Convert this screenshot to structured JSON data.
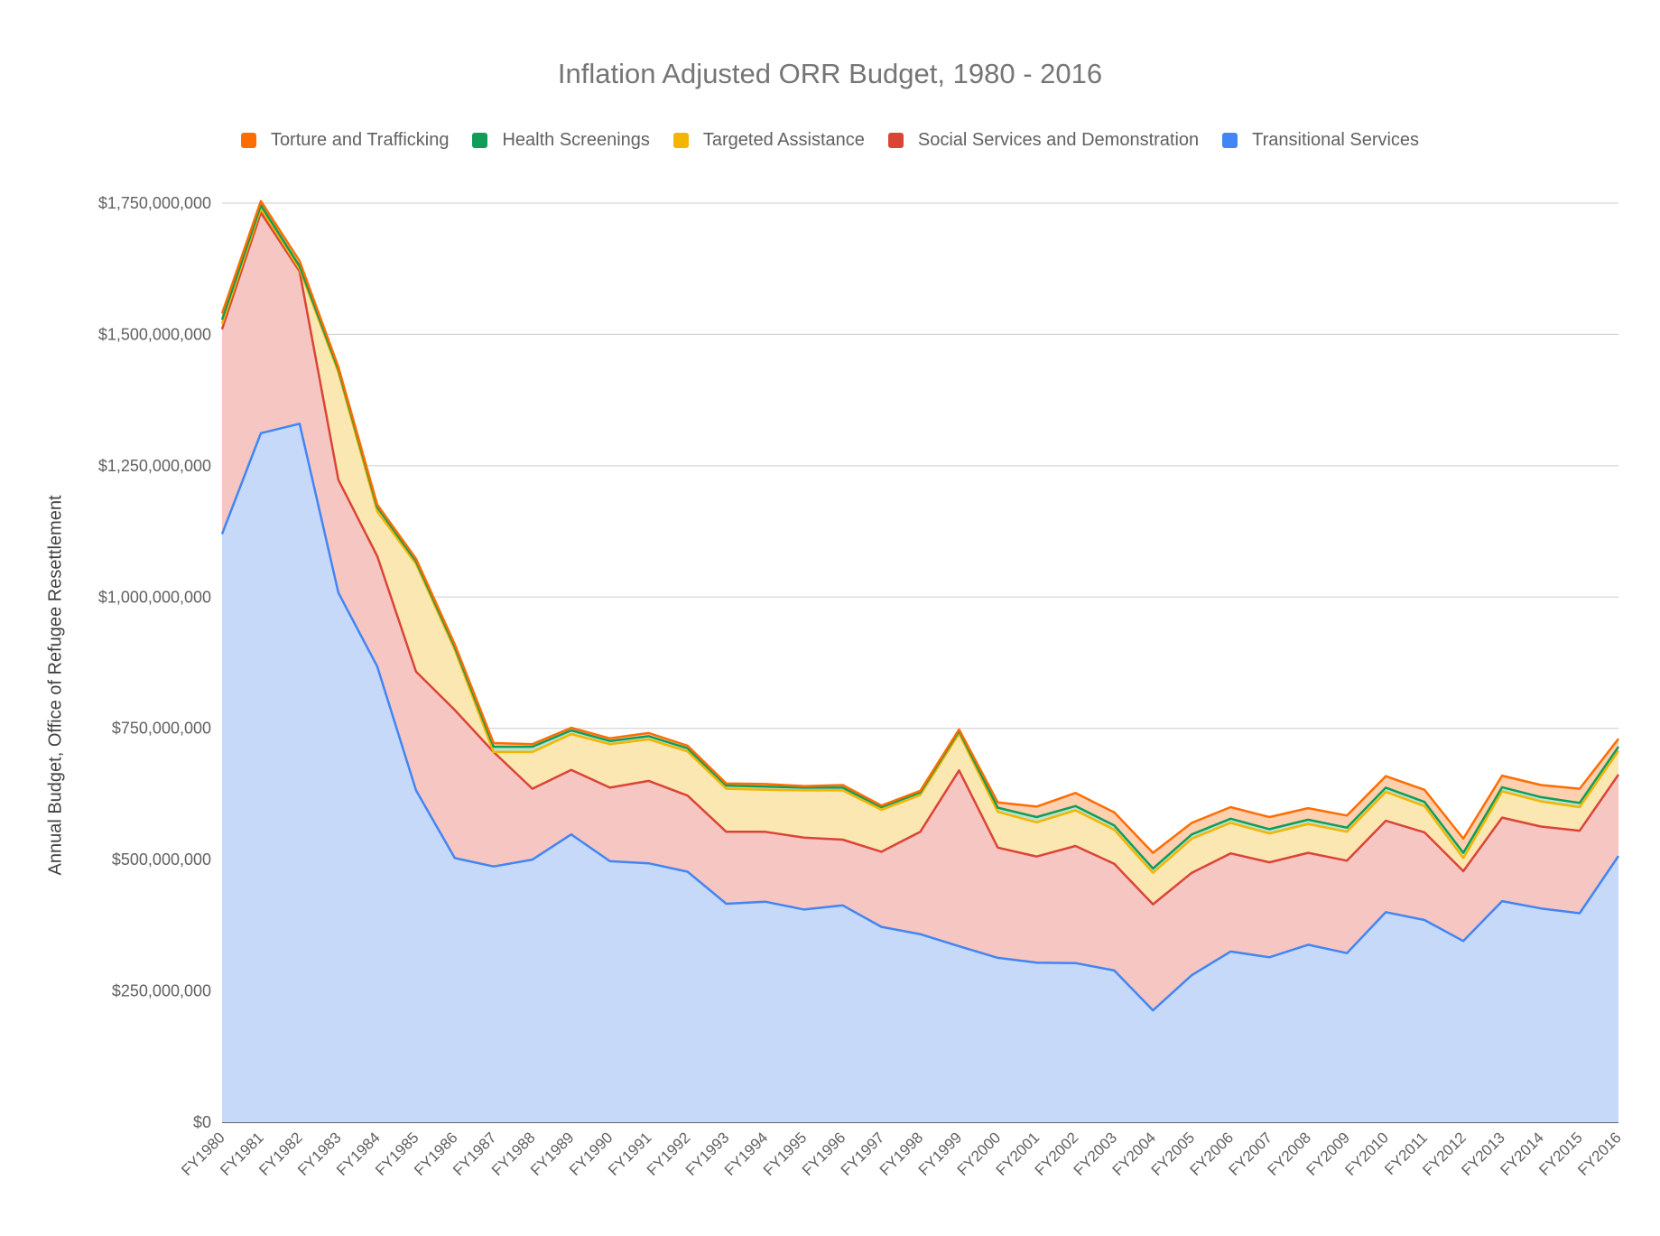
{
  "chart_data": {
    "type": "area",
    "stacked": true,
    "title": "Inflation Adjusted ORR Budget, 1980 - 2016",
    "ylabel": "Annual Budget, Office of Refugee Resettlement",
    "xlabel": "",
    "ylim": [
      0,
      1750000000
    ],
    "yticks": [
      "$0",
      "$250,000,000",
      "$500,000,000",
      "$750,000,000",
      "$1,000,000,000",
      "$1,250,000,000",
      "$1,500,000,000",
      "$1,750,000,000"
    ],
    "ytick_values": [
      0,
      250000000,
      500000000,
      750000000,
      1000000000,
      1250000000,
      1500000000,
      1750000000
    ],
    "grid": true,
    "legend_position": "top",
    "categories": [
      "FY1980",
      "FY1981",
      "FY1982",
      "FY1983",
      "FY1984",
      "FY1985",
      "FY1986",
      "FY1987",
      "FY1988",
      "FY1989",
      "FY1990",
      "FY1991",
      "FY1992",
      "FY1993",
      "FY1994",
      "FY1995",
      "FY1996",
      "FY1997",
      "FY1998",
      "FY1999",
      "FY2000",
      "FY2001",
      "FY2002",
      "FY2003",
      "FY2004",
      "FY2005",
      "FY2006",
      "FY2007",
      "FY2008",
      "FY2009",
      "FY2010",
      "FY2011",
      "FY2012",
      "FY2013",
      "FY2014",
      "FY2015",
      "FY2016"
    ],
    "series": [
      {
        "name": "Transitional Services",
        "color": "#4285f4",
        "fill": "#c6d9f9",
        "values": [
          1120000000,
          1312000000,
          1330000000,
          1008000000,
          868000000,
          632000000,
          503000000,
          487000000,
          500000000,
          548000000,
          497000000,
          493000000,
          477000000,
          416000000,
          420000000,
          405000000,
          413000000,
          372000000,
          358000000,
          335000000,
          313000000,
          304000000,
          303000000,
          289000000,
          213000000,
          280000000,
          325000000,
          314000000,
          338000000,
          322000000,
          400000000,
          385000000,
          345000000,
          421000000,
          407000000,
          398000000,
          507000000
        ]
      },
      {
        "name": "Social Services and Demonstration",
        "color": "#db4437",
        "fill": "#f5c6c2",
        "values": [
          390000000,
          420000000,
          290000000,
          215000000,
          210000000,
          226000000,
          282000000,
          218000000,
          135000000,
          123000000,
          140000000,
          157000000,
          145000000,
          137000000,
          133000000,
          137000000,
          125000000,
          143000000,
          195000000,
          335000000,
          210000000,
          202000000,
          223000000,
          203000000,
          202000000,
          195000000,
          187000000,
          181000000,
          175000000,
          176000000,
          174000000,
          167000000,
          133000000,
          159000000,
          156000000,
          157000000,
          155000000
        ]
      },
      {
        "name": "Targeted Assistance",
        "color": "#f4b400",
        "fill": "#fbe7b2",
        "values": [
          10000000,
          8000000,
          5000000,
          205000000,
          85000000,
          205000000,
          115000000,
          0,
          70000000,
          68000000,
          83000000,
          79000000,
          84000000,
          82000000,
          80000000,
          90000000,
          94000000,
          80000000,
          70000000,
          70000000,
          68000000,
          65000000,
          68000000,
          65000000,
          60000000,
          65000000,
          58000000,
          55000000,
          55000000,
          55000000,
          55000000,
          50000000,
          25000000,
          50000000,
          48000000,
          45000000,
          45000000
        ]
      },
      {
        "name": "Health Screenings",
        "color": "#0f9d58",
        "fill": "#bde3cf",
        "values": [
          8000000,
          6000000,
          5000000,
          5000000,
          8000000,
          5000000,
          5000000,
          10000000,
          10000000,
          7000000,
          6000000,
          6000000,
          6000000,
          6000000,
          6000000,
          5000000,
          5000000,
          5000000,
          5000000,
          5000000,
          8000000,
          10000000,
          8000000,
          8000000,
          8000000,
          8000000,
          8000000,
          8000000,
          8000000,
          8000000,
          8000000,
          8000000,
          10000000,
          8000000,
          8000000,
          8000000,
          8000000
        ]
      },
      {
        "name": "Torture and Trafficking",
        "color": "#ff6d00",
        "fill": "#ffd0b0",
        "values": [
          12000000,
          8000000,
          10000000,
          5000000,
          5000000,
          5000000,
          5000000,
          7000000,
          5000000,
          5000000,
          5000000,
          6000000,
          5000000,
          4000000,
          5000000,
          3000000,
          5000000,
          3000000,
          3000000,
          3000000,
          10000000,
          20000000,
          25000000,
          25000000,
          30000000,
          22000000,
          22000000,
          23000000,
          22000000,
          23000000,
          22000000,
          23000000,
          27000000,
          22000000,
          23000000,
          27000000,
          15000000
        ]
      }
    ]
  }
}
